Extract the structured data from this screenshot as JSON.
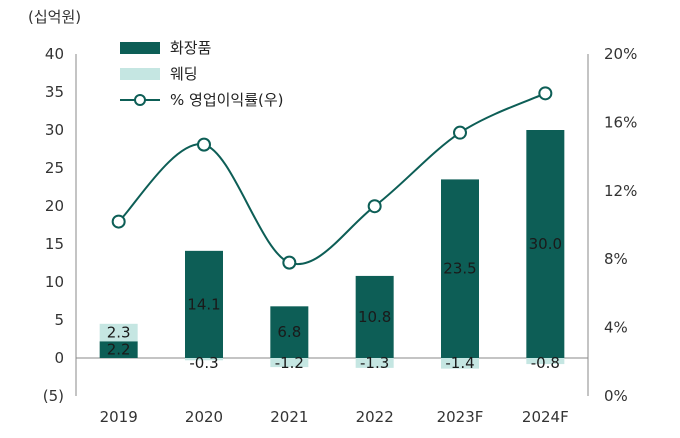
{
  "chart_data": {
    "type": "bar",
    "unit_label": "(십억원)",
    "categories": [
      "2019",
      "2020",
      "2021",
      "2022",
      "2023F",
      "2024F"
    ],
    "series": [
      {
        "name": "화장품",
        "type": "bar",
        "axis": "left",
        "values": [
          2.2,
          14.1,
          6.8,
          10.8,
          23.5,
          30.0
        ],
        "labels": [
          "2.2",
          "14.1",
          "6.8",
          "10.8",
          "23.5",
          "30.0"
        ],
        "color": "#0d5e56"
      },
      {
        "name": "웨딩",
        "type": "bar",
        "axis": "left",
        "values": [
          2.3,
          -0.3,
          -1.2,
          -1.3,
          -1.4,
          -0.8
        ],
        "labels": [
          "2.3",
          "-0.3",
          "-1.2",
          "-1.3",
          "-1.4",
          "-0.8"
        ],
        "color": "#c5e6e2"
      },
      {
        "name": "% 영업이익률(우)",
        "type": "line",
        "axis": "right",
        "values": [
          10.2,
          14.7,
          7.8,
          11.1,
          15.4,
          17.7
        ],
        "color": "#0d5e56"
      }
    ],
    "left_axis": {
      "min": -5,
      "max": 40,
      "ticks": [
        "40",
        "35",
        "30",
        "25",
        "20",
        "15",
        "10",
        "5",
        "0",
        "(5)"
      ]
    },
    "right_axis": {
      "min": 0,
      "max": 20,
      "ticks": [
        "20%",
        "16%",
        "12%",
        "8%",
        "4%",
        "0%"
      ]
    },
    "legend_position": "top-left",
    "grid": false
  }
}
